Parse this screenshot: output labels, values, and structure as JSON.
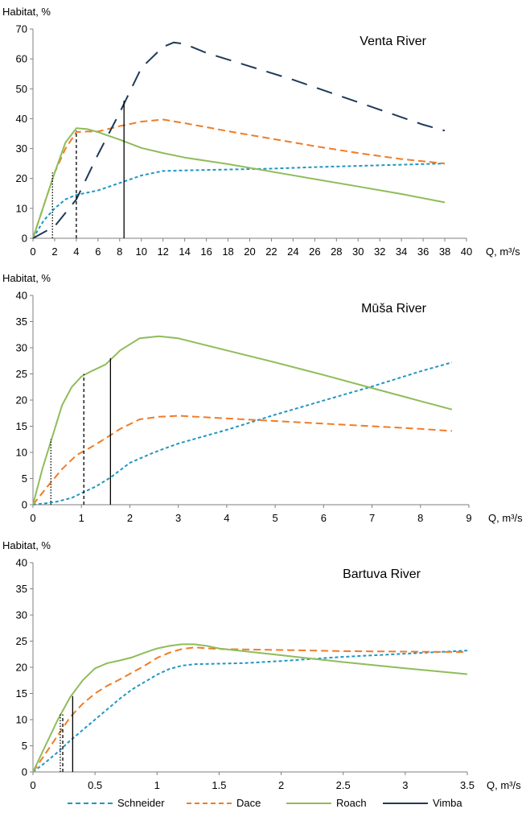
{
  "series_styles": {
    "Schneider": {
      "color": "#2196c2",
      "dash": "4 3"
    },
    "Dace": {
      "color": "#f07c28",
      "dash": "9 5"
    },
    "Roach": {
      "color": "#8fbc5a",
      "dash": ""
    },
    "Vimba": {
      "color": "#1f3a5a",
      "dash": "20 13"
    }
  },
  "legend": [
    "Schneider",
    "Dace",
    "Roach",
    "Vimba"
  ],
  "chart_data": [
    {
      "type": "line",
      "title": "Venta River",
      "ylabel": "Habitat, %",
      "xlabel": "Q, m³/s",
      "xlim": [
        0,
        40
      ],
      "ylim": [
        0,
        70
      ],
      "xticks": [
        0,
        2,
        4,
        6,
        8,
        10,
        12,
        14,
        16,
        18,
        20,
        22,
        24,
        26,
        28,
        30,
        32,
        34,
        36,
        38,
        40
      ],
      "yticks": [
        0,
        10,
        20,
        30,
        40,
        50,
        60,
        70
      ],
      "series": [
        {
          "name": "Schneider",
          "x": [
            0,
            1,
            2,
            3,
            4,
            6,
            8,
            10,
            12,
            14,
            18,
            22,
            26,
            30,
            34,
            38
          ],
          "y": [
            0,
            6,
            10,
            13,
            14.5,
            16,
            18.5,
            21,
            22.5,
            22.7,
            23,
            23.3,
            23.8,
            24.2,
            24.6,
            25
          ]
        },
        {
          "name": "Dace",
          "x": [
            0,
            1,
            2,
            3,
            4,
            5,
            6,
            8,
            10,
            12,
            14,
            18,
            22,
            26,
            30,
            34,
            38
          ],
          "y": [
            0,
            11,
            22,
            30,
            35.5,
            35.7,
            35.7,
            37.5,
            39,
            39.7,
            38.5,
            35.8,
            33.3,
            30.8,
            28.5,
            26.5,
            25
          ]
        },
        {
          "name": "Roach",
          "x": [
            0,
            1,
            2,
            3,
            4,
            5,
            6,
            8,
            10,
            12,
            14,
            18,
            22,
            26,
            30,
            34,
            38
          ],
          "y": [
            0,
            11,
            22,
            32,
            36.8,
            36.5,
            35.5,
            33,
            30.2,
            28.5,
            27,
            24.8,
            22.3,
            19.8,
            17.3,
            14.8,
            12
          ]
        },
        {
          "name": "Vimba",
          "x": [
            0,
            2,
            4,
            6,
            8,
            10,
            12,
            13,
            14,
            16,
            20,
            24,
            28,
            32,
            36,
            38
          ],
          "y": [
            0,
            4,
            13,
            28,
            42,
            57,
            64,
            65.5,
            65,
            62,
            57.5,
            53,
            48,
            43,
            38,
            36
          ]
        }
      ],
      "markers": [
        {
          "x": 1.8,
          "y": 22,
          "style": "dotted"
        },
        {
          "x": 4,
          "y": 36,
          "style": "dashed"
        },
        {
          "x": 8.4,
          "y": 46,
          "style": "solid"
        }
      ]
    },
    {
      "type": "line",
      "title": "Mūša River",
      "ylabel": "Habitat, %",
      "xlabel": "Q, m³/s",
      "xlim": [
        0,
        9
      ],
      "ylim": [
        0,
        40
      ],
      "xticks": [
        0,
        1,
        2,
        3,
        4,
        5,
        6,
        7,
        8,
        9
      ],
      "yticks": [
        0,
        5,
        10,
        15,
        20,
        25,
        30,
        35,
        40
      ],
      "series": [
        {
          "name": "Schneider",
          "x": [
            0,
            0.3,
            0.5,
            0.8,
            1.0,
            1.3,
            1.6,
            2.0,
            2.5,
            3.0,
            4.0,
            5.0,
            6.0,
            7.0,
            8.0,
            8.65
          ],
          "y": [
            0,
            0.3,
            0.6,
            1.3,
            2.2,
            3.5,
            5.2,
            8,
            10,
            11.7,
            14.3,
            17.2,
            19.9,
            22.6,
            25.5,
            27.2
          ]
        },
        {
          "name": "Dace",
          "x": [
            0,
            0.3,
            0.6,
            0.9,
            1.2,
            1.5,
            1.8,
            2.2,
            2.6,
            3.0,
            4.0,
            5.0,
            6.0,
            7.0,
            8.0,
            8.65
          ],
          "y": [
            0,
            3.5,
            6.8,
            9.5,
            11,
            12.7,
            14.5,
            16.3,
            16.8,
            17,
            16.5,
            16,
            15.5,
            15,
            14.5,
            14.1
          ]
        },
        {
          "name": "Roach",
          "x": [
            0,
            0.2,
            0.4,
            0.6,
            0.8,
            1.0,
            1.2,
            1.5,
            1.8,
            2.2,
            2.6,
            3.0,
            4.0,
            5.0,
            6.0,
            7.0,
            8.0,
            8.65
          ],
          "y": [
            0,
            7,
            13,
            19,
            22.5,
            24.5,
            25.5,
            26.8,
            29.5,
            31.8,
            32.2,
            31.8,
            29.5,
            27.2,
            24.8,
            22.3,
            19.8,
            18.2
          ]
        }
      ],
      "markers": [
        {
          "x": 0.37,
          "y": 12.5,
          "style": "dotted"
        },
        {
          "x": 1.05,
          "y": 25,
          "style": "dashed"
        },
        {
          "x": 1.6,
          "y": 28,
          "style": "solid"
        }
      ]
    },
    {
      "type": "line",
      "title": "Bartuva River",
      "ylabel": "Habitat, %",
      "xlabel": "Q, m³/s",
      "xlim": [
        0,
        3.5
      ],
      "ylim": [
        0,
        40
      ],
      "xticks": [
        0,
        0.5,
        1,
        1.5,
        2,
        2.5,
        3,
        3.5
      ],
      "yticks": [
        0,
        5,
        10,
        15,
        20,
        25,
        30,
        35,
        40
      ],
      "series": [
        {
          "name": "Schneider",
          "x": [
            0,
            0.1,
            0.2,
            0.3,
            0.4,
            0.5,
            0.6,
            0.7,
            0.8,
            0.9,
            1.0,
            1.1,
            1.2,
            1.3,
            1.5,
            1.7,
            2.0,
            2.5,
            3.0,
            3.5
          ],
          "y": [
            0,
            1.8,
            3.8,
            6,
            8,
            10,
            12,
            14,
            15.8,
            17.2,
            18.6,
            19.7,
            20.3,
            20.6,
            20.7,
            20.8,
            21.2,
            22,
            22.6,
            23.2
          ]
        },
        {
          "name": "Dace",
          "x": [
            0,
            0.1,
            0.2,
            0.3,
            0.4,
            0.5,
            0.6,
            0.7,
            0.8,
            0.9,
            1.0,
            1.1,
            1.2,
            1.3,
            1.5,
            2.0,
            2.5,
            3.0,
            3.5
          ],
          "y": [
            0,
            3.5,
            7,
            10.5,
            13,
            15,
            16.5,
            17.7,
            19,
            20.3,
            21.8,
            22.8,
            23.5,
            23.8,
            23.5,
            23.3,
            23.1,
            23,
            22.9
          ]
        },
        {
          "name": "Roach",
          "x": [
            0,
            0.1,
            0.2,
            0.3,
            0.4,
            0.5,
            0.6,
            0.7,
            0.8,
            0.9,
            1.0,
            1.1,
            1.2,
            1.3,
            1.4,
            1.5,
            2.0,
            2.5,
            3.0,
            3.5
          ],
          "y": [
            0,
            5,
            10,
            14.3,
            17.5,
            19.8,
            20.8,
            21.3,
            21.9,
            22.8,
            23.6,
            24.1,
            24.4,
            24.4,
            24.1,
            23.6,
            22.3,
            21,
            19.8,
            18.7
          ]
        }
      ],
      "markers": [
        {
          "x": 0.22,
          "y": 11,
          "style": "dotted"
        },
        {
          "x": 0.24,
          "y": 11,
          "style": "dashed"
        },
        {
          "x": 0.32,
          "y": 14.5,
          "style": "solid"
        }
      ]
    }
  ]
}
